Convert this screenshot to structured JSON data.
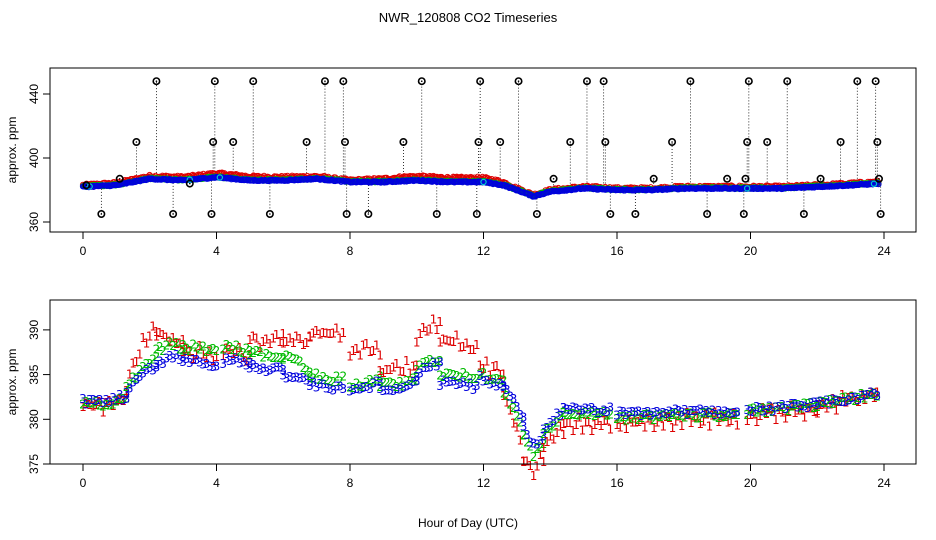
{
  "title": "NWR_120808  CO2 Timeseries",
  "x_axis_label": "Hour of Day (UTC)",
  "colors": {
    "series1": "#dd0000",
    "series2": "#00bb00",
    "series3": "#0000dd",
    "cyan": "#00cccc",
    "outlier": "#000000"
  },
  "chart_data": [
    {
      "type": "scatter",
      "panel": "top",
      "ylabel": "approx. ppm",
      "xlim": [
        0,
        24
      ],
      "ylim": [
        360,
        450
      ],
      "x_ticks": [
        "0",
        "4",
        "8",
        "12",
        "16",
        "20",
        "24"
      ],
      "y_ticks": [
        "360",
        "400",
        "440"
      ],
      "series_names": [
        "1",
        "2",
        "3"
      ],
      "curve": [
        [
          0,
          382
        ],
        [
          1,
          383
        ],
        [
          2,
          387
        ],
        [
          3,
          386
        ],
        [
          4,
          388
        ],
        [
          5,
          386
        ],
        [
          6,
          386
        ],
        [
          7,
          387
        ],
        [
          8,
          385
        ],
        [
          9,
          385
        ],
        [
          10,
          386
        ],
        [
          11,
          385
        ],
        [
          12,
          385
        ],
        [
          12.6,
          383
        ],
        [
          13,
          380
        ],
        [
          13.5,
          376
        ],
        [
          14,
          379
        ],
        [
          15,
          381
        ],
        [
          16,
          380
        ],
        [
          17,
          380
        ],
        [
          18,
          381
        ],
        [
          19,
          381
        ],
        [
          20,
          381
        ],
        [
          21,
          381
        ],
        [
          22,
          382
        ],
        [
          23,
          383
        ],
        [
          23.8,
          384
        ]
      ],
      "offsets": [
        [
          0,
          0
        ],
        [
          1.5,
          -0.5
        ],
        [
          3,
          -1
        ],
        [
          4.5,
          -1.5
        ],
        [
          6,
          -1
        ],
        [
          8,
          0
        ],
        [
          9.6,
          -1.5
        ],
        [
          10.2,
          -1.5
        ],
        [
          12,
          -1.5
        ],
        [
          12.5,
          -1
        ],
        [
          13,
          0
        ],
        [
          13.5,
          0
        ],
        [
          15,
          0
        ],
        [
          16,
          0
        ],
        [
          24,
          0
        ]
      ],
      "outliers": [
        [
          0.1,
          383
        ],
        [
          0.55,
          365
        ],
        [
          1.1,
          387
        ],
        [
          1.6,
          410
        ],
        [
          2.2,
          448
        ],
        [
          2.7,
          365
        ],
        [
          3.2,
          384
        ],
        [
          3.85,
          365
        ],
        [
          3.9,
          410
        ],
        [
          3.95,
          448
        ],
        [
          4.5,
          410
        ],
        [
          5.1,
          448
        ],
        [
          5.6,
          365
        ],
        [
          6.7,
          410
        ],
        [
          7.25,
          448
        ],
        [
          7.8,
          448
        ],
        [
          7.85,
          410
        ],
        [
          7.9,
          365
        ],
        [
          8.55,
          365
        ],
        [
          9.6,
          410
        ],
        [
          10.15,
          448
        ],
        [
          10.6,
          365
        ],
        [
          11.8,
          365
        ],
        [
          11.85,
          410
        ],
        [
          11.9,
          448
        ],
        [
          12.5,
          410
        ],
        [
          13.05,
          448
        ],
        [
          13.6,
          365
        ],
        [
          14.1,
          387
        ],
        [
          14.6,
          410
        ],
        [
          15.1,
          448
        ],
        [
          15.6,
          448
        ],
        [
          15.65,
          410
        ],
        [
          15.8,
          365
        ],
        [
          16.55,
          365
        ],
        [
          17.1,
          387
        ],
        [
          17.65,
          410
        ],
        [
          18.2,
          448
        ],
        [
          18.7,
          365
        ],
        [
          19.3,
          387
        ],
        [
          19.8,
          365
        ],
        [
          19.85,
          387
        ],
        [
          19.9,
          410
        ],
        [
          19.95,
          448
        ],
        [
          20.5,
          410
        ],
        [
          21.1,
          448
        ],
        [
          21.6,
          365
        ],
        [
          22.1,
          387
        ],
        [
          22.7,
          410
        ],
        [
          23.2,
          448
        ],
        [
          23.75,
          448
        ],
        [
          23.8,
          410
        ],
        [
          23.85,
          387
        ],
        [
          23.9,
          365
        ]
      ]
    },
    {
      "type": "scatter",
      "panel": "bottom",
      "ylabel": "approx. ppm",
      "xlim": [
        0,
        24
      ],
      "ylim": [
        375,
        392
      ],
      "x_ticks": [
        "0",
        "4",
        "8",
        "12",
        "16",
        "20",
        "24"
      ],
      "y_ticks": [
        "375",
        "380",
        "385",
        "390"
      ],
      "point_labels": [
        "1",
        "2",
        "3"
      ],
      "segments": [
        {
          "x0": 0.0,
          "x1": 1.3,
          "y3": [
            382,
            382,
            382.5
          ],
          "y2": [
            -0.4,
            -0.4,
            0
          ],
          "y1": [
            -0.5,
            -0.5,
            0
          ]
        },
        {
          "x0": 1.3,
          "x1": 2.2,
          "y3": [
            383,
            385,
            386
          ],
          "y2": [
            0.5,
            0.5,
            1
          ],
          "y1": [
            1,
            3,
            4
          ]
        },
        {
          "x0": 2.2,
          "x1": 3.0,
          "y3": [
            386,
            387,
            387
          ],
          "y2": [
            1.5,
            1.5,
            1
          ],
          "y1": [
            3.5,
            2,
            1.5
          ]
        },
        {
          "x0": 3.0,
          "x1": 4.0,
          "y3": [
            386.5,
            386.5,
            386
          ],
          "y2": [
            1.5,
            1.5,
            1.5
          ],
          "y1": [
            1,
            1,
            0.5
          ]
        },
        {
          "x0": 4.2,
          "x1": 5.0,
          "y3": [
            386.5,
            386.5,
            386
          ],
          "y2": [
            1.5,
            1.5,
            1.5
          ],
          "y1": [
            1,
            1,
            0.5
          ]
        },
        {
          "x0": 5.0,
          "x1": 6.0,
          "y3": [
            386,
            385.5,
            385.5
          ],
          "y2": [
            1.5,
            1.5,
            1.5
          ],
          "y1": [
            3,
            3,
            4
          ]
        },
        {
          "x0": 6.0,
          "x1": 6.8,
          "y3": [
            385,
            384.5,
            384
          ],
          "y2": [
            2,
            2,
            1.5
          ],
          "y1": [
            4,
            4.5,
            5
          ]
        },
        {
          "x0": 6.8,
          "x1": 7.8,
          "y3": [
            384,
            383.5,
            383.5
          ],
          "y2": [
            1,
            1,
            1
          ],
          "y1": [
            5.5,
            6,
            6
          ]
        },
        {
          "x0": 8.0,
          "x1": 8.9,
          "y3": [
            383,
            383.5,
            384
          ],
          "y2": [
            0.5,
            0.5,
            0.5
          ],
          "y1": [
            4,
            4.5,
            4
          ]
        },
        {
          "x0": 8.9,
          "x1": 10.0,
          "y3": [
            383.5,
            383.5,
            384
          ],
          "y2": [
            0.3,
            0.3,
            0.3
          ],
          "y1": [
            2,
            2,
            2
          ]
        },
        {
          "x0": 10.0,
          "x1": 10.7,
          "y3": [
            385,
            386,
            386
          ],
          "y2": [
            0.5,
            0.5,
            0.5
          ],
          "y1": [
            4,
            4,
            5
          ]
        },
        {
          "x0": 10.7,
          "x1": 11.8,
          "y3": [
            384,
            384,
            383.5
          ],
          "y2": [
            1,
            1,
            1
          ],
          "y1": [
            5,
            4.5,
            4
          ]
        },
        {
          "x0": 11.9,
          "x1": 12.6,
          "y3": [
            384.5,
            384,
            383.5
          ],
          "y2": [
            0.5,
            0.5,
            0.5
          ],
          "y1": [
            1.5,
            1.5,
            1.5
          ]
        },
        {
          "x0": 12.6,
          "x1": 13.2,
          "y3": [
            383.5,
            382,
            380
          ],
          "y2": [
            -0.5,
            -1,
            -1.5
          ],
          "y1": [
            -0.5,
            -2,
            -4
          ]
        },
        {
          "x0": 13.2,
          "x1": 13.8,
          "y3": [
            379,
            377,
            378
          ],
          "y2": [
            -1,
            -1,
            -1
          ],
          "y1": [
            -3,
            -3,
            -2
          ]
        },
        {
          "x0": 13.8,
          "x1": 14.4,
          "y3": [
            379,
            380,
            381
          ],
          "y2": [
            -0.5,
            -0.5,
            -0.5
          ],
          "y1": [
            -1.5,
            -2,
            -2
          ]
        },
        {
          "x0": 14.4,
          "x1": 15.8,
          "y3": [
            381,
            381,
            381
          ],
          "y2": [
            -0.5,
            -0.5,
            -0.5
          ],
          "y1": [
            -1.5,
            -1.5,
            -1.5
          ]
        },
        {
          "x0": 16.0,
          "x1": 19.6,
          "y3": [
            380.5,
            380.8,
            380.8
          ],
          "y2": [
            -0.5,
            -0.4,
            -0.3
          ],
          "y1": [
            -1,
            -0.9,
            -0.8
          ]
        },
        {
          "x0": 19.9,
          "x1": 22.0,
          "y3": [
            381,
            381.3,
            381.6
          ],
          "y2": [
            -0.2,
            -0.2,
            0
          ],
          "y1": [
            -0.6,
            -0.5,
            -0.4
          ]
        },
        {
          "x0": 22.0,
          "x1": 23.8,
          "y3": [
            381.6,
            382.2,
            382.8
          ],
          "y2": [
            0,
            0,
            0
          ],
          "y1": [
            -0.3,
            -0.2,
            0
          ]
        }
      ]
    }
  ]
}
